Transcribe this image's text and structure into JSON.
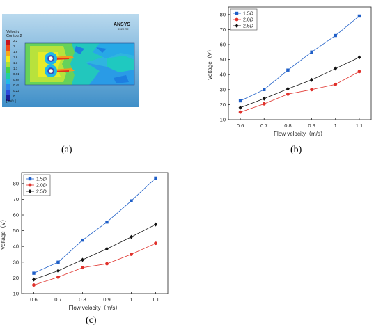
{
  "panels": {
    "a": "(a)",
    "b": "(b)",
    "c": "(c)"
  },
  "cfd": {
    "legend_title_1": "Velocity",
    "legend_title_2": "Contour2",
    "legend_values": [
      "2.2",
      "2",
      "1.8",
      "1.6",
      "1.3",
      "1.1",
      "0.91",
      "0.68",
      "0.45",
      "0.22",
      "0"
    ],
    "legend_colors": [
      "#c8141e",
      "#ef4a19",
      "#f7a81c",
      "#f3ec1e",
      "#a8e03a",
      "#43d34a",
      "#1ed0a0",
      "#1fb8e8",
      "#2f83ee",
      "#2c4bdb",
      "#1a1e9a"
    ],
    "unit": "[ m/s ]",
    "logo": "ANSYS",
    "logo_sub": "2020 R2"
  },
  "chart_data": [
    {
      "type": "line",
      "panel": "b",
      "x": [
        0.6,
        0.7,
        0.8,
        0.9,
        1,
        1.1
      ],
      "xticks": [
        "0.6",
        "0.7",
        "0.8",
        "0.9",
        "1",
        "1.1"
      ],
      "yticks": [
        "10",
        "20",
        "30",
        "40",
        "50",
        "60",
        "70",
        "80"
      ],
      "ylim": [
        10,
        85
      ],
      "xlabel": "Flow velocity（m/s）",
      "ylabel": "Voltage（V）",
      "grid": false,
      "legend": "top-left",
      "series": [
        {
          "name": "1.5D",
          "values": [
            22.5,
            30,
            43,
            55,
            66,
            79
          ],
          "color": "#1f5fc8",
          "marker": "square"
        },
        {
          "name": "2.0D",
          "values": [
            15,
            20.5,
            27,
            30,
            33.5,
            42
          ],
          "color": "#e0302a",
          "marker": "circle"
        },
        {
          "name": "2.5D",
          "values": [
            18,
            24,
            30.5,
            36.5,
            44,
            51.5
          ],
          "color": "#111111",
          "marker": "diamond"
        }
      ]
    },
    {
      "type": "line",
      "panel": "c",
      "x": [
        0.6,
        0.7,
        0.8,
        0.9,
        1,
        1.1
      ],
      "xticks": [
        "0.6",
        "0.7",
        "0.8",
        "0.9",
        "1",
        "1.1"
      ],
      "yticks": [
        "10",
        "20",
        "30",
        "40",
        "50",
        "60",
        "70",
        "80"
      ],
      "ylim": [
        10,
        87
      ],
      "xlabel": "Flow velocity（m/s）",
      "ylabel": "Voltage（V）",
      "grid": false,
      "legend": "top-left",
      "series": [
        {
          "name": "1.5D",
          "values": [
            23,
            30,
            44,
            55.5,
            69,
            83.5
          ],
          "color": "#1f5fc8",
          "marker": "square"
        },
        {
          "name": "2.0D",
          "values": [
            15.5,
            20.5,
            26.5,
            29,
            35,
            42
          ],
          "color": "#e0302a",
          "marker": "circle"
        },
        {
          "name": "2.5D",
          "values": [
            19,
            24.5,
            31.5,
            38.5,
            46,
            54
          ],
          "color": "#111111",
          "marker": "diamond"
        }
      ]
    }
  ]
}
